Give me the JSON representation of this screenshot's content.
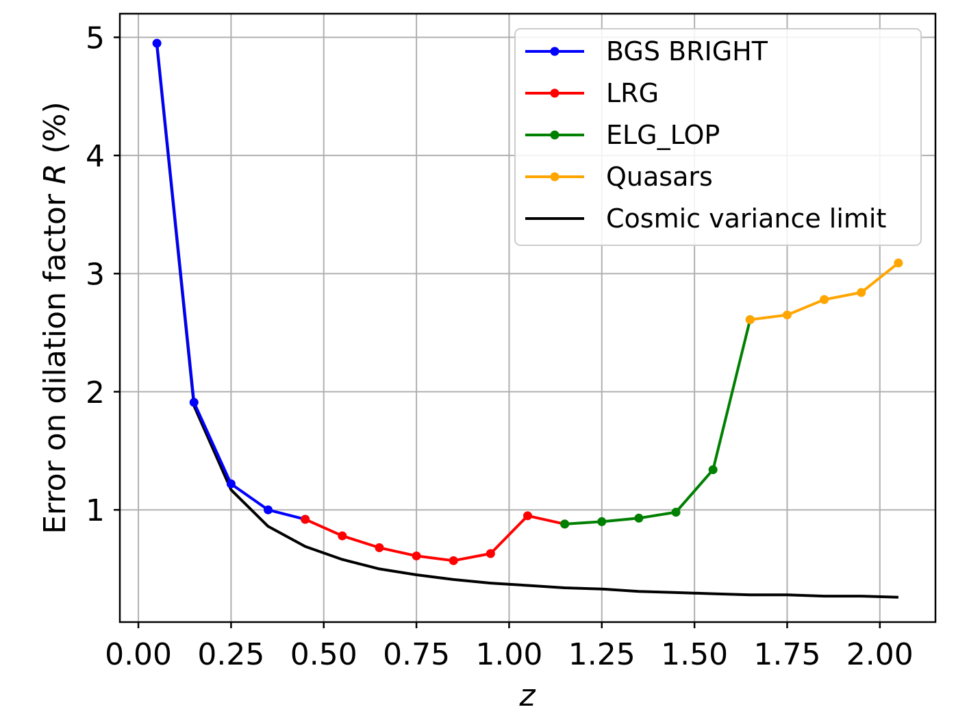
{
  "chart_data": {
    "type": "line",
    "xlabel": "z",
    "ylabel_prefix": "Error on dilation factor ",
    "ylabel_var": "R",
    "ylabel_suffix": " (%)",
    "xlim": [
      -0.05,
      2.15
    ],
    "ylim": [
      0.05,
      5.2
    ],
    "xticks": [
      0.0,
      0.25,
      0.5,
      0.75,
      1.0,
      1.25,
      1.5,
      1.75,
      2.0
    ],
    "xtick_labels": [
      "0.00",
      "0.25",
      "0.50",
      "0.75",
      "1.00",
      "1.25",
      "1.50",
      "1.75",
      "2.00"
    ],
    "yticks": [
      1,
      2,
      3,
      4,
      5
    ],
    "ytick_labels": [
      "1",
      "2",
      "3",
      "4",
      "5"
    ],
    "grid": true,
    "legend_position": "top-right",
    "series": [
      {
        "name": "BGS BRIGHT",
        "color": "#0000ff",
        "markers": true,
        "x": [
          0.05,
          0.15,
          0.25,
          0.35,
          0.45
        ],
        "y": [
          4.95,
          1.91,
          1.22,
          1.0,
          0.92
        ]
      },
      {
        "name": "LRG",
        "color": "#ff0000",
        "markers": true,
        "x": [
          0.45,
          0.55,
          0.65,
          0.75,
          0.85,
          0.95,
          1.05,
          1.15
        ],
        "y": [
          0.92,
          0.78,
          0.68,
          0.61,
          0.57,
          0.63,
          0.95,
          0.88
        ]
      },
      {
        "name": "ELG_LOP",
        "color": "#008000",
        "markers": true,
        "x": [
          1.15,
          1.25,
          1.35,
          1.45,
          1.55,
          1.65
        ],
        "y": [
          0.88,
          0.9,
          0.93,
          0.98,
          1.34,
          2.61
        ]
      },
      {
        "name": "Quasars",
        "color": "#ffa500",
        "markers": true,
        "x": [
          1.65,
          1.75,
          1.85,
          1.95,
          2.05
        ],
        "y": [
          2.61,
          2.65,
          2.78,
          2.84,
          3.09
        ]
      },
      {
        "name": "Cosmic variance limit",
        "color": "#000000",
        "markers": false,
        "x": [
          0.05,
          0.15,
          0.25,
          0.35,
          0.45,
          0.55,
          0.65,
          0.75,
          0.85,
          0.95,
          1.05,
          1.15,
          1.25,
          1.35,
          1.45,
          1.55,
          1.65,
          1.75,
          1.85,
          1.95,
          2.05
        ],
        "y": [
          4.93,
          1.88,
          1.17,
          0.86,
          0.69,
          0.58,
          0.5,
          0.45,
          0.41,
          0.38,
          0.36,
          0.34,
          0.33,
          0.31,
          0.3,
          0.29,
          0.28,
          0.28,
          0.27,
          0.27,
          0.26
        ]
      }
    ]
  }
}
